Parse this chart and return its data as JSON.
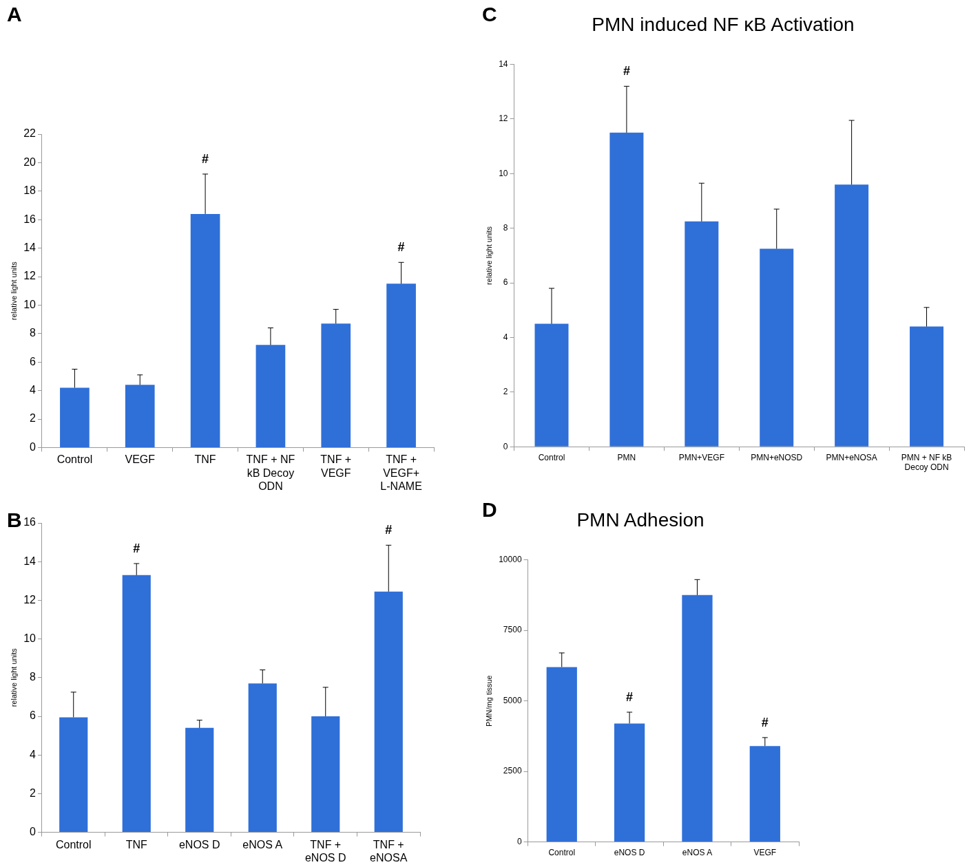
{
  "chart_data": [
    {
      "type": "bar",
      "annotations": [
        "A",
        {
          "text": "#",
          "x": "TNF",
          "y": 19.2
        },
        {
          "text": "#",
          "x": "TNF + VEGF+ L-NAME",
          "y": 13.0
        }
      ],
      "ylabel": "relative light units",
      "categories": [
        "Control",
        "VEGF",
        "TNF",
        "TNF + NF kB Decoy ODN",
        "TNF + VEGF",
        "TNF + VEGF+ L-NAME"
      ],
      "values": [
        4.2,
        4.4,
        16.4,
        7.2,
        8.7,
        11.5
      ],
      "errors": [
        [
          4.2,
          5.5
        ],
        [
          4.4,
          5.1
        ],
        [
          16.4,
          19.2
        ],
        [
          7.2,
          8.4
        ],
        [
          8.7,
          9.7
        ],
        [
          11.5,
          13.0
        ]
      ],
      "color": "#2f6fd8",
      "ylim": [
        0,
        22
      ],
      "yticks": [
        0,
        2,
        4,
        6,
        8,
        10,
        12,
        14,
        16,
        18,
        20,
        22
      ],
      "grid": false
    },
    {
      "type": "bar",
      "annotations": [
        "B",
        {
          "text": "#",
          "x": "TNF",
          "y": 13.9
        },
        {
          "text": "#",
          "x": "TNF + eNOSA",
          "y": 14.85
        }
      ],
      "ylabel": "relative light units",
      "categories": [
        "Control",
        "TNF",
        "eNOS D",
        "eNOS A",
        "TNF + eNOS D",
        "TNF + eNOSA"
      ],
      "values": [
        5.95,
        13.3,
        5.4,
        7.7,
        6.0,
        12.45
      ],
      "errors": [
        [
          5.95,
          7.25
        ],
        [
          13.3,
          13.9
        ],
        [
          5.4,
          5.8
        ],
        [
          7.7,
          8.4
        ],
        [
          6.0,
          7.5
        ],
        [
          12.45,
          14.85
        ]
      ],
      "color": "#2f6fd8",
      "ylim": [
        0,
        16
      ],
      "yticks": [
        0,
        2,
        4,
        6,
        8,
        10,
        12,
        14,
        16
      ],
      "grid": false
    },
    {
      "type": "bar",
      "title": "PMN induced NF κB Activation",
      "annotations": [
        "C",
        {
          "text": "#",
          "x": "PMN",
          "y": 13.2
        }
      ],
      "ylabel": "relative light units",
      "categories": [
        "Control",
        "PMN",
        "PMN+VEGF",
        "PMN+eNOSD",
        "PMN+eNOSA",
        "PMN + NF kB Decoy ODN"
      ],
      "values": [
        4.5,
        11.5,
        8.25,
        7.25,
        9.6,
        4.4
      ],
      "errors": [
        [
          4.5,
          5.8
        ],
        [
          11.5,
          13.2
        ],
        [
          8.25,
          9.65
        ],
        [
          7.25,
          8.7
        ],
        [
          9.6,
          11.95
        ],
        [
          4.4,
          5.1
        ]
      ],
      "color": "#2f6fd8",
      "ylim": [
        0,
        14
      ],
      "yticks": [
        0,
        2,
        4,
        6,
        8,
        10,
        12,
        14
      ],
      "grid": false
    },
    {
      "type": "bar",
      "title": "PMN Adhesion",
      "annotations": [
        "D",
        {
          "text": "#",
          "x": "eNOS D",
          "y": 4600
        },
        {
          "text": "#",
          "x": "VEGF",
          "y": 3700
        }
      ],
      "ylabel": "PMN/mg tissue",
      "categories": [
        "Control",
        "eNOS D",
        "eNOS A",
        "VEGF"
      ],
      "values": [
        6200,
        4200,
        8750,
        3400
      ],
      "errors": [
        [
          6200,
          6700
        ],
        [
          4200,
          4600
        ],
        [
          8750,
          9300
        ],
        [
          3400,
          3700
        ]
      ],
      "color": "#2f6fd8",
      "ylim": [
        0,
        10000
      ],
      "yticks": [
        0,
        2500,
        5000,
        7500,
        10000
      ],
      "grid": false
    }
  ]
}
